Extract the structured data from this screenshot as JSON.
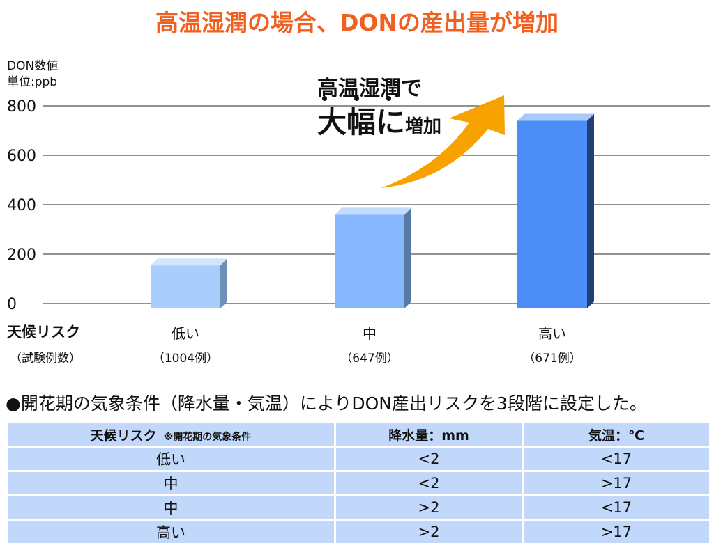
{
  "title": "高温湿潤の場合、DONの産出量が増加",
  "y_axis": {
    "label": "DON数値",
    "unit": "単位:ppb"
  },
  "annotation": {
    "line1": "高温湿潤で",
    "line2_big": "大幅に",
    "line2_small": "増加"
  },
  "category_header": {
    "title": "天候リスク",
    "subtitle": "（試験例数）"
  },
  "colors": {
    "title": "#f06020",
    "arrow": "#f8a200",
    "bar_low": "#a9cdfc",
    "bar_mid": "#86b6fc",
    "bar_high": "#4b8ef7",
    "table_cell": "#c2d8fb"
  },
  "chart_data": {
    "type": "bar",
    "categories": [
      "低い",
      "中",
      "高い"
    ],
    "counts": [
      "（1004例）",
      "（647例）",
      "（671例）"
    ],
    "values": [
      160,
      365,
      745
    ],
    "ylim": [
      0,
      800
    ],
    "yticks": [
      0,
      200,
      400,
      600,
      800
    ],
    "ylabel": "DON数値",
    "grid": true
  },
  "note": "●開花期の気象条件（降水量・気温）によりDON産出リスクを3段階に設定した。",
  "table": {
    "headers": {
      "risk": "天候リスク",
      "risk_note": "※開花期の気象条件",
      "rain": "降水量：mm",
      "temp": "気温：℃"
    },
    "rows": [
      {
        "risk": "低い",
        "rain": "<2",
        "temp": "<17"
      },
      {
        "risk": "中",
        "rain": "<2",
        "temp": ">17"
      },
      {
        "risk": "中",
        "rain": ">2",
        "temp": "<17"
      },
      {
        "risk": "高い",
        "rain": ">2",
        "temp": ">17"
      }
    ]
  }
}
